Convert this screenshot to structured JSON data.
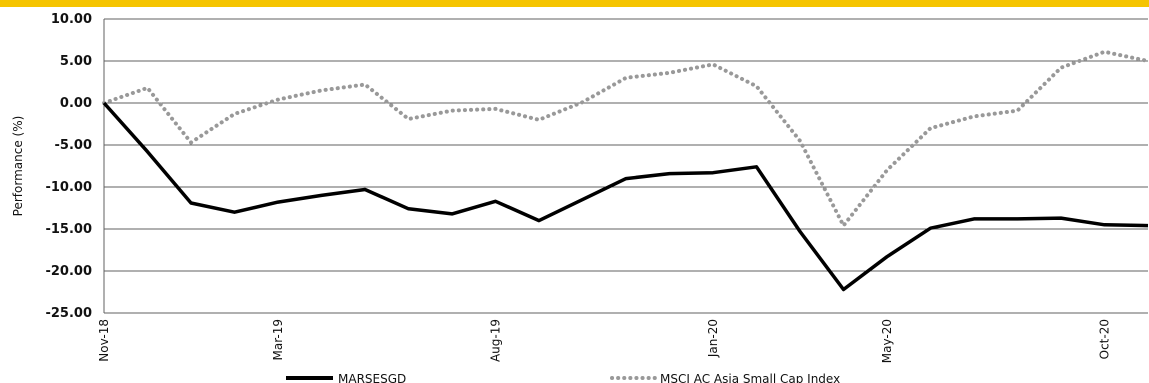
{
  "colors": {
    "top_bar": "#F5C400",
    "series1": "#000000",
    "series2": "#999999",
    "grid": "#606060"
  },
  "chart_data": {
    "type": "line",
    "xlabel": "",
    "ylabel": "Performance (%)",
    "ylim": [
      -25,
      10
    ],
    "y_ticks": [
      "10.00",
      "5.00",
      "0.00",
      "-5.00",
      "-10.00",
      "-15.00",
      "-20.00",
      "-25.00"
    ],
    "x_tick_labels": [
      {
        "label": "Nov-18",
        "index": 0
      },
      {
        "label": "Mar-19",
        "index": 4
      },
      {
        "label": "Aug-19",
        "index": 9
      },
      {
        "label": "Jan-20",
        "index": 14
      },
      {
        "label": "May-20",
        "index": 18
      },
      {
        "label": "Oct-20",
        "index": 23
      }
    ],
    "x": [
      "Nov-18",
      "Dec-18",
      "Jan-19",
      "Feb-19",
      "Mar-19",
      "Apr-19",
      "May-19",
      "Jun-19",
      "Jul-19",
      "Aug-19",
      "Sep-19",
      "Oct-19",
      "Nov-19",
      "Dec-19",
      "Jan-20",
      "Feb-20",
      "Mar-20",
      "Apr-20",
      "May-20",
      "Jun-20",
      "Jul-20",
      "Aug-20",
      "Sep-20",
      "Oct-20",
      "Nov-20"
    ],
    "series": [
      {
        "name": "MARSESGD",
        "style": "solid",
        "values": [
          0.0,
          -5.8,
          -11.9,
          -13.0,
          -11.8,
          -11.0,
          -10.3,
          -12.6,
          -13.2,
          -11.7,
          -14.0,
          -11.5,
          -9.0,
          -8.4,
          -8.3,
          -7.6,
          -15.3,
          -22.2,
          -18.3,
          -14.9,
          -13.8,
          -13.8,
          -13.7,
          -14.5,
          -14.6
        ]
      },
      {
        "name": "MSCI AC Asia Small Cap Index",
        "style": "dotted",
        "values": [
          0.0,
          1.8,
          -4.7,
          -1.3,
          0.4,
          1.5,
          2.2,
          -1.9,
          -0.9,
          -0.7,
          -2.0,
          0.1,
          3.0,
          3.6,
          4.6,
          2.0,
          -4.5,
          -14.6,
          -8.0,
          -3.0,
          -1.6,
          -0.9,
          4.2,
          6.1,
          5.0
        ]
      }
    ],
    "grid": true,
    "legend_position": "bottom"
  }
}
